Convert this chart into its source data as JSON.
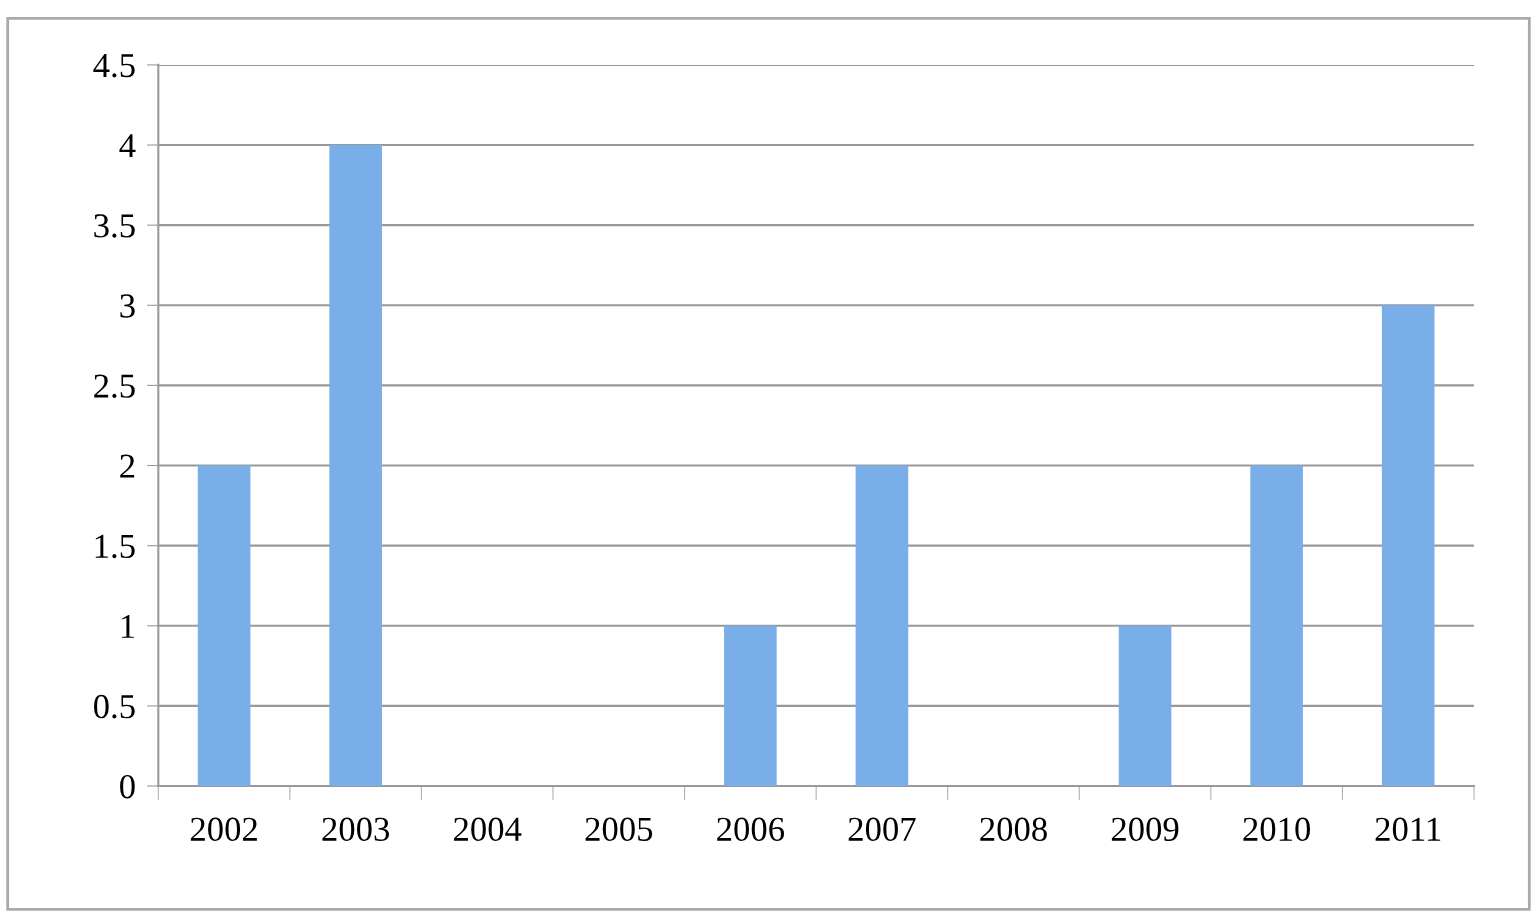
{
  "chart_data": {
    "type": "bar",
    "categories": [
      "2002",
      "2003",
      "2004",
      "2005",
      "2006",
      "2007",
      "2008",
      "2009",
      "2010",
      "2011"
    ],
    "values": [
      2,
      4,
      0,
      0,
      1,
      2,
      0,
      1,
      2,
      3
    ],
    "color": "#7aaee8",
    "ylim": [
      0,
      4.5
    ],
    "yticks": [
      {
        "value": 0,
        "label": "0"
      },
      0.5,
      1,
      1.5,
      2,
      2.5,
      3,
      3.5,
      4,
      4.5
    ],
    "grid": "y",
    "legend": false
  }
}
